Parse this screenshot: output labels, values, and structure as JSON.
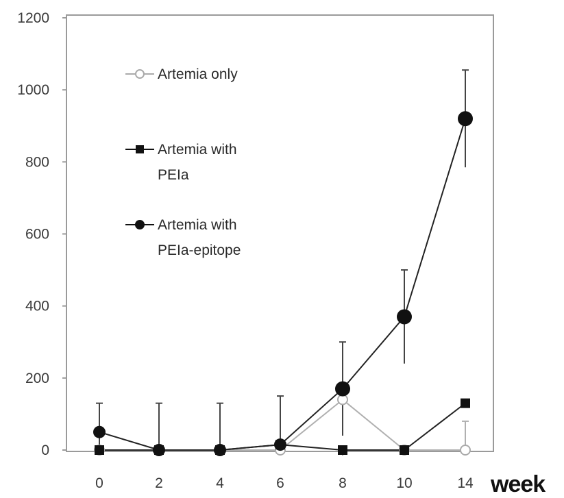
{
  "chart_data": {
    "type": "line",
    "x": [
      0,
      2,
      4,
      6,
      8,
      10,
      14
    ],
    "x_tick_labels": [
      "0",
      "2",
      "4",
      "6",
      "8",
      "10",
      "14"
    ],
    "x_unit_label": "week",
    "y_tick_labels": [
      "0",
      "200",
      "400",
      "600",
      "800",
      "1000",
      "1200"
    ],
    "ylim": [
      0,
      1200
    ],
    "grid": false,
    "legend_position": "top-left",
    "series": [
      {
        "name": "Artemia only",
        "marker": "open-circle",
        "color": "#bbbbbb",
        "values": [
          0,
          0,
          0,
          0,
          140,
          0,
          0
        ],
        "error": [
          0,
          0,
          0,
          0,
          0,
          0,
          80
        ]
      },
      {
        "name": "Artemia with PEIa",
        "marker": "square",
        "color": "#111111",
        "values": [
          0,
          0,
          0,
          15,
          0,
          0,
          130
        ],
        "error": [
          0,
          0,
          0,
          0,
          0,
          0,
          0
        ]
      },
      {
        "name": "Artemia with PEIa-epitope",
        "marker": "filled-circle",
        "color": "#111111",
        "values": [
          50,
          0,
          0,
          15,
          170,
          370,
          920
        ],
        "error": [
          80,
          130,
          130,
          135,
          130,
          130,
          135
        ]
      }
    ]
  },
  "legend": [
    {
      "line1": "Artemia only",
      "line2": ""
    },
    {
      "line1": "Artemia with",
      "line2": "PEIa"
    },
    {
      "line1": "Artemia with",
      "line2": "PEIa-epitope"
    }
  ]
}
